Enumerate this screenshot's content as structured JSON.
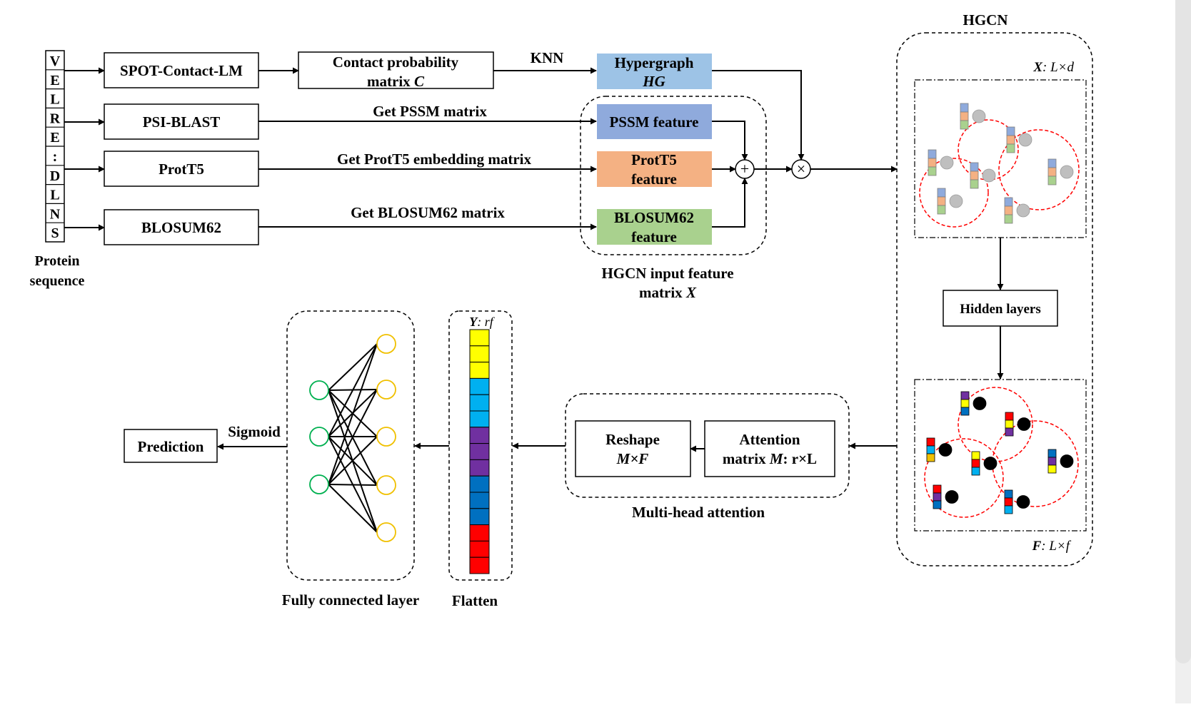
{
  "protein_sequence": {
    "letters": [
      "V",
      "E",
      "L",
      "R",
      "E",
      ":",
      "D",
      "L",
      "N",
      "S"
    ],
    "label_line1": "Protein",
    "label_line2": "sequence"
  },
  "tools": {
    "spot": "SPOT-Contact-LM",
    "psiblast": "PSI-BLAST",
    "prott5": "ProtT5",
    "blosum": "BLOSUM62"
  },
  "contact": {
    "line1": "Contact probability",
    "line2_text": "matrix ",
    "line2_italic": "C"
  },
  "edges": {
    "knn": "KNN",
    "pssm": "Get PSSM matrix",
    "prott5": "Get ProtT5 embedding matrix",
    "blosum": "Get BLOSUM62 matrix",
    "sigmoid": "Sigmoid"
  },
  "hypergraph": {
    "line1": "Hypergraph",
    "line2": "HG"
  },
  "features": {
    "pssm": "PSSM feature",
    "prott5_line1": "ProtT5",
    "prott5_line2": "feature",
    "blosum_line1": "BLOSUM62",
    "blosum_line2": "feature"
  },
  "hgcn_input": {
    "line1": "HGCN input feature",
    "line2_text": "matrix ",
    "line2_italic": "X"
  },
  "operators": {
    "plus": "+",
    "times": "×"
  },
  "hgcn": {
    "title": "HGCN",
    "x_label_var": "X",
    "x_label_dims": ": L×d",
    "hidden": "Hidden layers",
    "f_label_var": "F",
    "f_label_dims": ": L×f"
  },
  "attention": {
    "reshape_line1": "Reshape",
    "reshape_line2": "M×F",
    "attn_line1": "Attention",
    "attn_line2_text": "matrix ",
    "attn_line2_var": "M",
    "attn_line2_dims": ": r×L",
    "caption": "Multi-head attention"
  },
  "flatten": {
    "label_var": "Y",
    "label_dims": ": rf",
    "caption": "Flatten",
    "cell_colors": [
      "#ffff00",
      "#ffff00",
      "#ffff00",
      "#00b0f0",
      "#00b0f0",
      "#00b0f0",
      "#7030a0",
      "#7030a0",
      "#7030a0",
      "#0070c0",
      "#0070c0",
      "#0070c0",
      "#ff0000",
      "#ff0000",
      "#ff0000"
    ]
  },
  "fc": {
    "caption": "Fully connected layer",
    "input_color": "#00b050",
    "output_color": "#f0c000"
  },
  "prediction": "Prediction",
  "colors": {
    "hypergraph_fill": "#9dc3e6",
    "pssm_fill": "#8faadc",
    "prott5_fill": "#f4b183",
    "blosum_fill": "#a9d18e",
    "hyperedge": "#ff0000",
    "node_gray": "#bfbfbf",
    "node_black": "#000000"
  }
}
